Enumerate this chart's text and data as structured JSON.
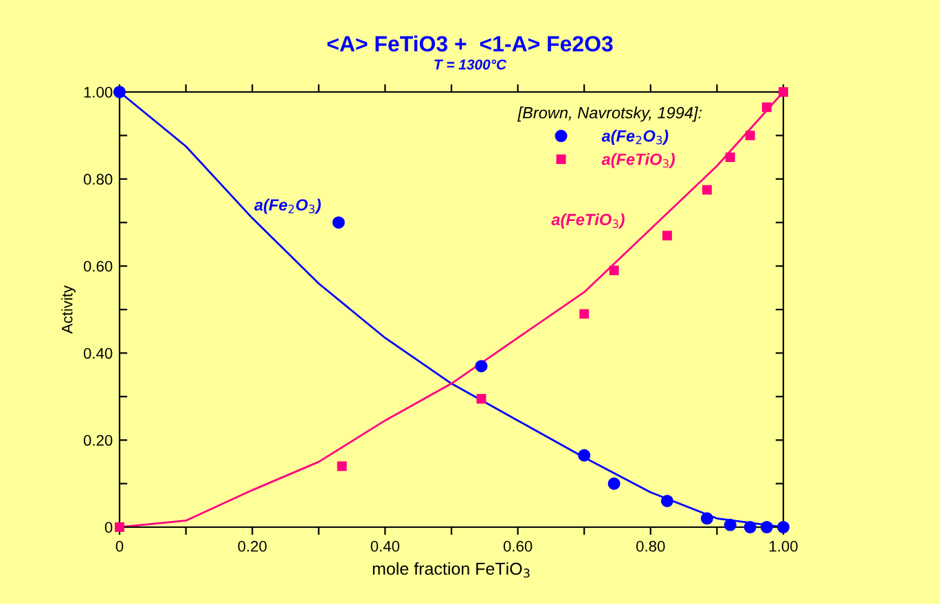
{
  "chart_data": {
    "type": "line",
    "title": "<A> FeTiO3 +  <1-A> Fe2O3",
    "subtitle": "T = 1300°C",
    "xlabel": "mole fraction FeTiO$_{3}$",
    "ylabel": "Activity",
    "legend_title": "[Brown, Navrotsky, 1994]:",
    "xlim": [
      0,
      1
    ],
    "ylim": [
      0,
      1
    ],
    "xticks": [
      {
        "value": 0,
        "label": "0"
      },
      {
        "value": 0.1,
        "label": null
      },
      {
        "value": 0.2,
        "label": "0.20"
      },
      {
        "value": 0.3,
        "label": null
      },
      {
        "value": 0.4,
        "label": "0.40"
      },
      {
        "value": 0.5,
        "label": null
      },
      {
        "value": 0.6,
        "label": "0.60"
      },
      {
        "value": 0.7,
        "label": null
      },
      {
        "value": 0.8,
        "label": "0.80"
      },
      {
        "value": 0.9,
        "label": null
      },
      {
        "value": 1,
        "label": "1.00"
      }
    ],
    "yticks": [
      {
        "value": 0,
        "label": "0"
      },
      {
        "value": 0.1,
        "label": null
      },
      {
        "value": 0.2,
        "label": "0.20"
      },
      {
        "value": 0.3,
        "label": null
      },
      {
        "value": 0.4,
        "label": "0.40"
      },
      {
        "value": 0.5,
        "label": null
      },
      {
        "value": 0.6,
        "label": "0.60"
      },
      {
        "value": 0.7,
        "label": null
      },
      {
        "value": 0.8,
        "label": "0.80"
      },
      {
        "value": 0.9,
        "label": null
      },
      {
        "value": 1,
        "label": "1.00"
      }
    ],
    "grid": false,
    "legend": "top right",
    "series": [
      {
        "name": "a(Fe$_{2}$O$_{3}$)",
        "color": "#0000ff",
        "x": [
          0,
          0.1,
          0.2,
          0.3,
          0.4,
          0.5,
          0.6,
          0.7,
          0.8,
          0.9,
          1.0
        ],
        "values": [
          1.0,
          0.875,
          0.71,
          0.56,
          0.435,
          0.33,
          0.245,
          0.16,
          0.08,
          0.02,
          0
        ]
      },
      {
        "name": "a(FeTiO$_{3}$)",
        "color": "#ff0080",
        "x": [
          0,
          0.1,
          0.2,
          0.3,
          0.4,
          0.5,
          0.6,
          0.7,
          0.8,
          0.9,
          1.0
        ],
        "values": [
          0,
          0.015,
          0.085,
          0.15,
          0.245,
          0.33,
          0.435,
          0.54,
          0.685,
          0.83,
          1.0
        ]
      },
      {
        "type": "scatter",
        "name": "a(Fe$_{2}$O$_{3}$)",
        "color": "#0000ff",
        "marker": "circle",
        "x": [
          0,
          0.33,
          0.545,
          0.7,
          0.745,
          0.825,
          0.885,
          0.92,
          0.95,
          0.975,
          1.0
        ],
        "values": [
          1.0,
          0.7,
          0.37,
          0.165,
          0.1,
          0.06,
          0.02,
          0.005,
          0,
          0,
          0
        ]
      },
      {
        "type": "scatter",
        "name": "a(FeTiO$_{3}$)",
        "color": "#ff0080",
        "marker": "square",
        "x": [
          0,
          0.335,
          0.545,
          0.7,
          0.745,
          0.825,
          0.885,
          0.92,
          0.95,
          0.975,
          1.0
        ],
        "values": [
          0,
          0.14,
          0.295,
          0.49,
          0.59,
          0.67,
          0.775,
          0.85,
          0.9,
          0.965,
          1.0
        ]
      }
    ]
  }
}
